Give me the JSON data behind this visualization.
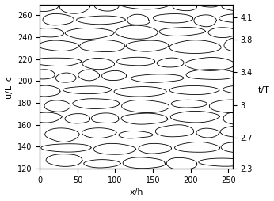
{
  "xlim": [
    0,
    256
  ],
  "ylim": [
    120,
    270
  ],
  "xlabel": "x/h",
  "ylabel": "u/L_c",
  "ylabel_right": "t/T",
  "yticks_left": [
    120,
    140,
    160,
    180,
    200,
    220,
    240,
    260
  ],
  "xticks": [
    0,
    50,
    100,
    150,
    200,
    250
  ],
  "r_pos": [
    120,
    148,
    178,
    208,
    238,
    258
  ],
  "r_lab": [
    "2.3",
    "2.7",
    "3",
    "3.4",
    "3.8",
    "4.1"
  ],
  "figsize": [
    3.46,
    2.54
  ],
  "dpi": 100,
  "seed": 7,
  "linewidth": 0.6,
  "linecolor": "black"
}
